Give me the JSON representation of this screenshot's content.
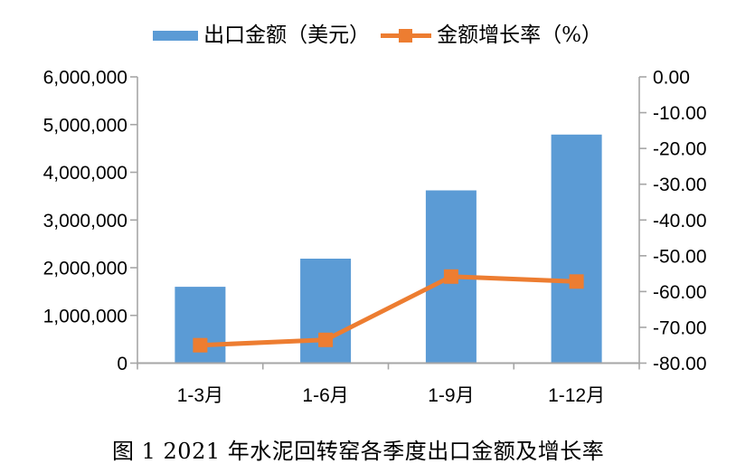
{
  "colors": {
    "bar_fill": "#5B9BD5",
    "line_stroke": "#ED7D31",
    "axis_stroke": "#A6A6A6",
    "text": "#000000",
    "background": "#FFFFFF"
  },
  "chart_data": {
    "type": "combo-bar-line",
    "title": "图 1  2021 年水泥回转窑各季度出口金额及增长率",
    "categories": [
      "1-3月",
      "1-6月",
      "1-9月",
      "1-12月"
    ],
    "series": [
      {
        "name": "出口金额（美元）",
        "type": "bar",
        "axis": "left",
        "values": [
          1600000,
          2190000,
          3620000,
          4790000
        ]
      },
      {
        "name": "金额增长率（%）",
        "type": "line",
        "axis": "right",
        "marker": "square",
        "values": [
          -75.0,
          -73.5,
          -55.8,
          -57.2
        ]
      }
    ],
    "left_axis": {
      "min": 0,
      "max": 6000000,
      "step": 1000000,
      "tick_labels": [
        "6,000,000",
        "5,000,000",
        "4,000,000",
        "3,000,000",
        "2,000,000",
        "1,000,000",
        "0"
      ]
    },
    "right_axis": {
      "min": -80,
      "max": 0,
      "step": 10,
      "tick_labels": [
        "0.00",
        "-10.00",
        "-20.00",
        "-30.00",
        "-40.00",
        "-50.00",
        "-60.00",
        "-70.00",
        "-80.00"
      ]
    },
    "grid": false,
    "legend_position": "top"
  }
}
